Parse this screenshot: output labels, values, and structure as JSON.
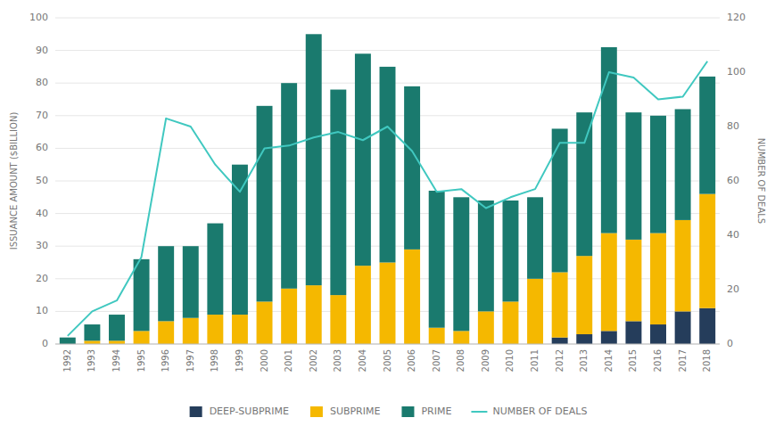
{
  "chart_data": {
    "type": "bar",
    "stacked": true,
    "grid": true,
    "legend": "bottom",
    "ylabel": "ISSUANCE AMOUNT ($BILLION)",
    "y2label": "NUMBER OF DEALS",
    "categories": [
      "1992",
      "1993",
      "1994",
      "1995",
      "1996",
      "1997",
      "1998",
      "1999",
      "2000",
      "2001",
      "2002",
      "2003",
      "2004",
      "2005",
      "2006",
      "2007",
      "2008",
      "2009",
      "2010",
      "2011",
      "2012",
      "2013",
      "2014",
      "2015",
      "2016",
      "2017",
      "2018"
    ],
    "series": [
      {
        "name": "DEEP-SUBPRIME",
        "type": "bar",
        "color": "#253d5b",
        "values": [
          0,
          0,
          0,
          0,
          0,
          0,
          0,
          0,
          0,
          0,
          0,
          0,
          0,
          0,
          0,
          0,
          0,
          0,
          0,
          0,
          2,
          3,
          4,
          7,
          6,
          10,
          11
        ]
      },
      {
        "name": "SUBPRIME",
        "type": "bar",
        "color": "#f5b800",
        "values": [
          0,
          1,
          1,
          4,
          7,
          8,
          9,
          9,
          13,
          17,
          18,
          15,
          24,
          25,
          29,
          5,
          4,
          10,
          13,
          20,
          20,
          24,
          30,
          25,
          28,
          28,
          35
        ]
      },
      {
        "name": "PRIME",
        "type": "bar",
        "color": "#1a7a6e",
        "values": [
          2,
          5,
          8,
          22,
          23,
          22,
          28,
          46,
          60,
          63,
          77,
          63,
          65,
          60,
          50,
          42,
          41,
          34,
          31,
          25,
          44,
          44,
          57,
          39,
          36,
          34,
          36
        ]
      },
      {
        "name": "NUMBER OF DEALS",
        "type": "line",
        "axis": "y2",
        "color": "#40c8c0",
        "values": [
          3,
          12,
          16,
          32,
          83,
          80,
          66,
          56,
          72,
          73,
          76,
          78,
          75,
          80,
          71,
          56,
          57,
          50,
          54,
          57,
          74,
          74,
          100,
          98,
          90,
          91,
          104
        ]
      }
    ],
    "ylim": [
      0,
      100
    ],
    "yticks": [
      0,
      10,
      20,
      30,
      40,
      50,
      60,
      70,
      80,
      90,
      100
    ],
    "y2lim": [
      0,
      120
    ],
    "y2ticks": [
      0,
      20,
      40,
      60,
      80,
      100,
      120
    ]
  }
}
